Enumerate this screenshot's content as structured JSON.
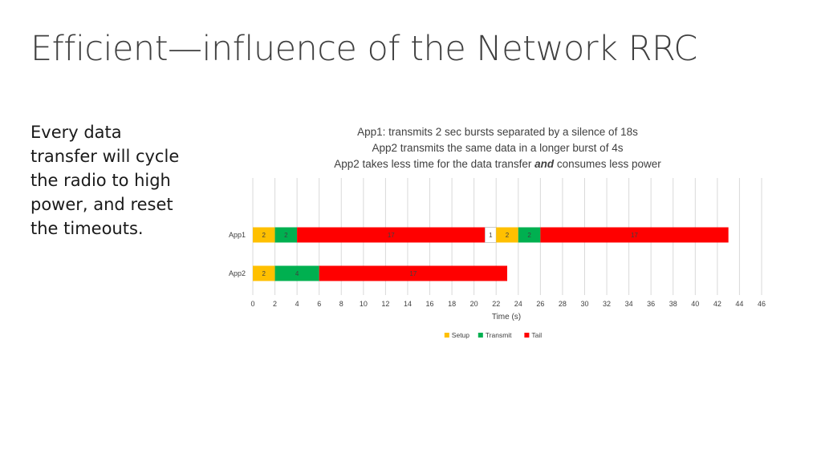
{
  "slide": {
    "title": "Efficient—influence of the Network RRC",
    "bullet": "Every data transfer will cycle the radio to high power, and reset the timeouts."
  },
  "chart_data": {
    "type": "bar",
    "orientation": "horizontal",
    "stacked": true,
    "title_lines": [
      "App1: transmits 2 sec bursts separated by a silence of 18s",
      "App2 transmits the same data in a longer burst of 4s"
    ],
    "title_line3": {
      "before": "App2 takes less time for the data transfer ",
      "emphasis": "and",
      "after": " consumes less power"
    },
    "categories": [
      "App1",
      "App2"
    ],
    "segment_kinds": [
      "Setup",
      "Transmit",
      "Tail",
      "Idle"
    ],
    "rows": [
      {
        "name": "App1",
        "segments": [
          {
            "kind": "Setup",
            "value": 2,
            "label": "2"
          },
          {
            "kind": "Transmit",
            "value": 2,
            "label": "2"
          },
          {
            "kind": "Tail",
            "value": 17,
            "label": "17"
          },
          {
            "kind": "Idle",
            "value": 1,
            "label": "1"
          },
          {
            "kind": "Setup",
            "value": 2,
            "label": "2"
          },
          {
            "kind": "Transmit",
            "value": 2,
            "label": "2"
          },
          {
            "kind": "Tail",
            "value": 17,
            "label": "17"
          }
        ]
      },
      {
        "name": "App2",
        "segments": [
          {
            "kind": "Setup",
            "value": 2,
            "label": "2"
          },
          {
            "kind": "Transmit",
            "value": 4,
            "label": "4"
          },
          {
            "kind": "Tail",
            "value": 17,
            "label": "17"
          }
        ]
      }
    ],
    "xlabel": "Time (s)",
    "xlim": [
      0,
      46
    ],
    "xticks": [
      0,
      2,
      4,
      6,
      8,
      10,
      12,
      14,
      16,
      18,
      20,
      22,
      24,
      26,
      28,
      30,
      32,
      34,
      36,
      38,
      40,
      42,
      44,
      46
    ],
    "grid": "vertical",
    "legend": {
      "placement": "bottom",
      "entries": [
        "Setup",
        "Transmit",
        "Tail"
      ]
    },
    "colors": {
      "Setup": "#FFC000",
      "Transmit": "#00B050",
      "Tail": "#FF0000",
      "Idle": "#FFFFFF"
    }
  }
}
